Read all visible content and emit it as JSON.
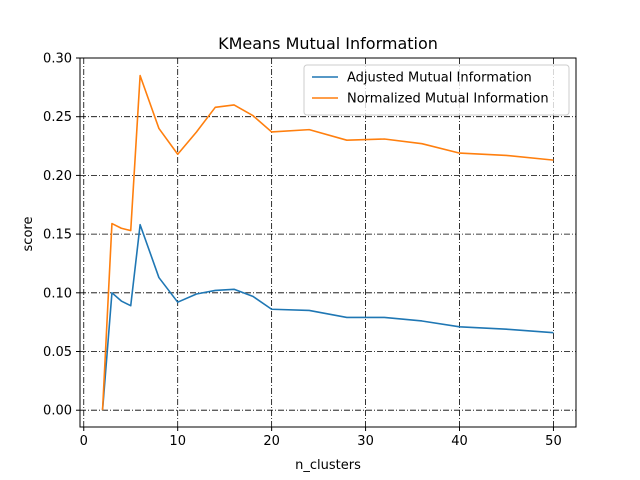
{
  "chart_data": {
    "type": "line",
    "title": "KMeans Mutual Information",
    "xlabel": "n_clusters",
    "ylabel": "score",
    "xlim": [
      -0.4,
      52.4
    ],
    "ylim": [
      -0.0143,
      0.3
    ],
    "xticks": [
      0,
      10,
      20,
      30,
      40,
      50
    ],
    "xtick_labels": [
      "0",
      "10",
      "20",
      "30",
      "40",
      "50"
    ],
    "yticks": [
      0.0,
      0.05,
      0.1,
      0.15,
      0.2,
      0.25,
      0.3
    ],
    "ytick_labels": [
      "0.00",
      "0.05",
      "0.10",
      "0.15",
      "0.20",
      "0.25",
      "0.30"
    ],
    "grid": true,
    "legend_position": "top-right",
    "x": [
      2,
      3,
      4,
      5,
      6,
      8,
      10,
      12,
      14,
      16,
      18,
      20,
      24,
      28,
      32,
      36,
      40,
      45,
      50
    ],
    "series": [
      {
        "name": "Adjusted Mutual Information",
        "color": "#1f77b4",
        "values": [
          0.0,
          0.1,
          0.093,
          0.089,
          0.158,
          0.113,
          0.092,
          0.099,
          0.102,
          0.103,
          0.097,
          0.086,
          0.085,
          0.079,
          0.079,
          0.076,
          0.071,
          0.069,
          0.066
        ]
      },
      {
        "name": "Normalized Mutual Information",
        "color": "#ff7f0e",
        "values": [
          0.0,
          0.159,
          0.155,
          0.153,
          0.285,
          0.24,
          0.218,
          0.237,
          0.258,
          0.26,
          0.251,
          0.237,
          0.239,
          0.23,
          0.231,
          0.227,
          0.219,
          0.217,
          0.213
        ]
      }
    ]
  }
}
